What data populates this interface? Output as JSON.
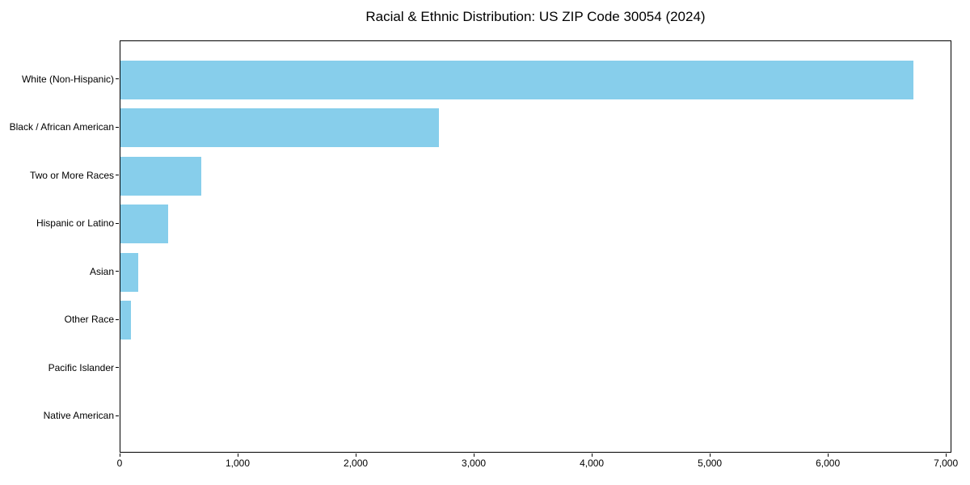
{
  "chart_data": {
    "type": "bar",
    "orientation": "horizontal",
    "title": "Racial & Ethnic Distribution: US ZIP Code 30054 (2024)",
    "categories": [
      "White (Non-Hispanic)",
      "Black / African American",
      "Two or More Races",
      "Hispanic or Latino",
      "Asian",
      "Other Race",
      "Pacific Islander",
      "Native American"
    ],
    "values": [
      6720,
      2695,
      685,
      405,
      153,
      92,
      0,
      0
    ],
    "xlabel": "",
    "ylabel": "",
    "xlim": [
      0,
      7047
    ],
    "xticks": [
      0,
      1000,
      2000,
      3000,
      4000,
      5000,
      6000,
      7000
    ],
    "xtick_labels": [
      "0",
      "1,000",
      "2,000",
      "3,000",
      "4,000",
      "5,000",
      "6,000",
      "7,000"
    ],
    "bar_color": "#87CEEB",
    "axis_color": "#000000",
    "background_color": "#ffffff",
    "grid": false,
    "legend": null
  }
}
